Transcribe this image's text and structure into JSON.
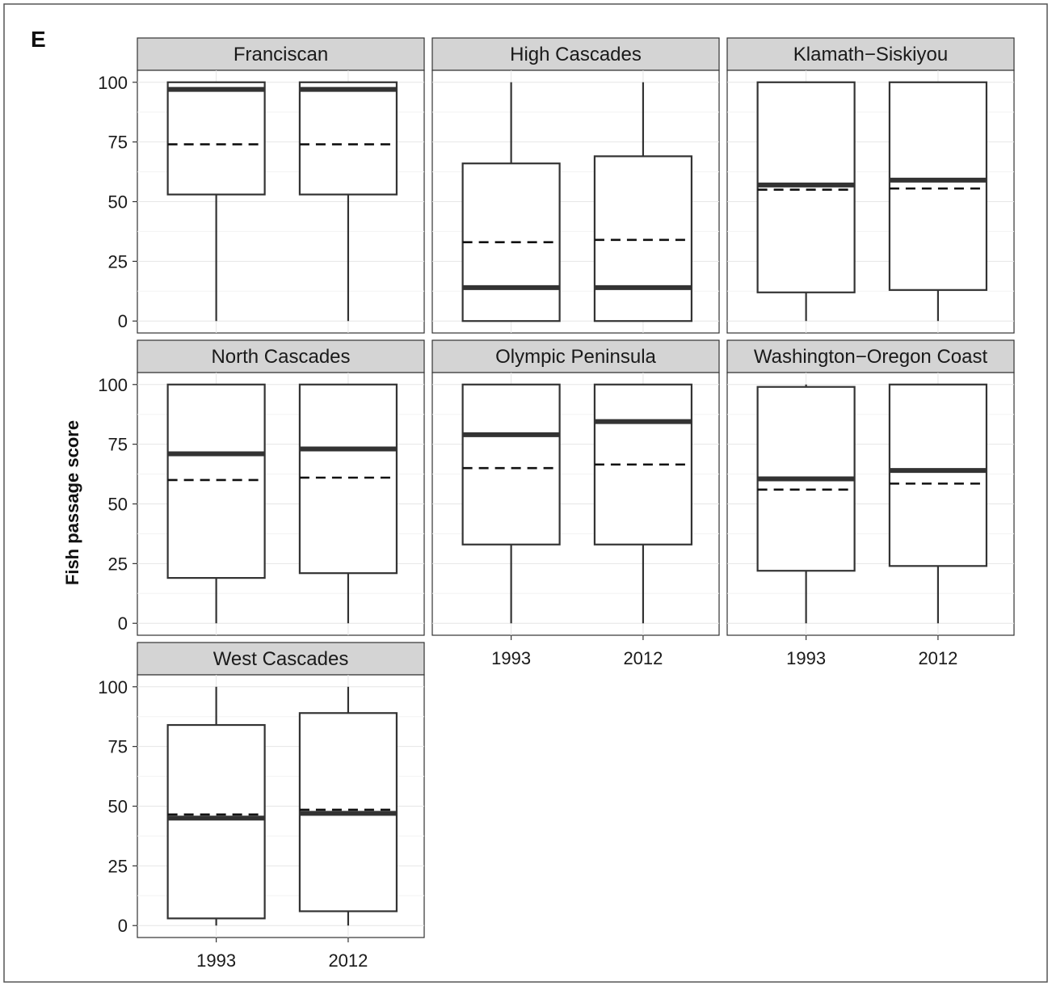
{
  "figure": {
    "panel_label": "E",
    "ylabel": "Fish passage score",
    "colors": {
      "strip_fill": "#d4d4d4",
      "box_line": "#333333",
      "panel_bg": "#ffffff"
    }
  },
  "chart_data": {
    "type": "box",
    "title": "",
    "xlabel": "",
    "ylabel": "Fish passage score",
    "categories": [
      "1993",
      "2012"
    ],
    "ylim": [
      -5,
      105
    ],
    "yticks": [
      0,
      25,
      50,
      75,
      100
    ],
    "grid": true,
    "legend": "none",
    "panels": [
      {
        "name": "Franciscan",
        "boxes": [
          {
            "x": "1993",
            "min": 0,
            "q1": 53,
            "median": 97,
            "q3": 100,
            "max": 100,
            "mean": 74
          },
          {
            "x": "2012",
            "min": 0,
            "q1": 53,
            "median": 97,
            "q3": 100,
            "max": 100,
            "mean": 74
          }
        ]
      },
      {
        "name": "High Cascades",
        "boxes": [
          {
            "x": "1993",
            "min": 0,
            "q1": 0,
            "median": 14,
            "q3": 66,
            "max": 100,
            "mean": 33
          },
          {
            "x": "2012",
            "min": 0,
            "q1": 0,
            "median": 14,
            "q3": 69,
            "max": 100,
            "mean": 34
          }
        ]
      },
      {
        "name": "Klamath−Siskiyou",
        "boxes": [
          {
            "x": "1993",
            "min": 0,
            "q1": 12,
            "median": 57,
            "q3": 100,
            "max": 100,
            "mean": 55
          },
          {
            "x": "2012",
            "min": 0,
            "q1": 13,
            "median": 59,
            "q3": 100,
            "max": 100,
            "mean": 55.5
          }
        ]
      },
      {
        "name": "North Cascades",
        "boxes": [
          {
            "x": "1993",
            "min": 0,
            "q1": 19,
            "median": 71,
            "q3": 100,
            "max": 100,
            "mean": 60
          },
          {
            "x": "2012",
            "min": 0,
            "q1": 21,
            "median": 73,
            "q3": 100,
            "max": 100,
            "mean": 61
          }
        ]
      },
      {
        "name": "Olympic Peninsula",
        "boxes": [
          {
            "x": "1993",
            "min": 0,
            "q1": 33,
            "median": 79,
            "q3": 100,
            "max": 100,
            "mean": 65
          },
          {
            "x": "2012",
            "min": 0,
            "q1": 33,
            "median": 84.5,
            "q3": 100,
            "max": 100,
            "mean": 66.5
          }
        ]
      },
      {
        "name": "Washington−Oregon Coast",
        "boxes": [
          {
            "x": "1993",
            "min": 0,
            "q1": 22,
            "median": 60.5,
            "q3": 99,
            "max": 100,
            "mean": 56
          },
          {
            "x": "2012",
            "min": 0,
            "q1": 24,
            "median": 64,
            "q3": 100,
            "max": 100,
            "mean": 58.5
          }
        ]
      },
      {
        "name": "West Cascades",
        "boxes": [
          {
            "x": "1993",
            "min": 0,
            "q1": 3,
            "median": 45,
            "q3": 84,
            "max": 100,
            "mean": 46.5
          },
          {
            "x": "2012",
            "min": 0,
            "q1": 6,
            "median": 47,
            "q3": 89,
            "max": 100,
            "mean": 48.5
          }
        ]
      }
    ]
  }
}
